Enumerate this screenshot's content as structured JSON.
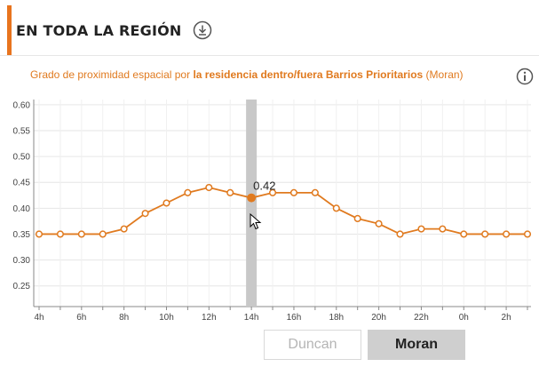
{
  "header": {
    "title": "EN TODA LA REGIÓN",
    "download_icon": "download-icon"
  },
  "subtitle": {
    "prefix": "Grado de proximidad espacial por ",
    "bold": "la residencia dentro/fuera Barrios Prioritarios",
    "suffix": " (Moran)"
  },
  "info_icon": "info-icon",
  "buttons": {
    "duncan": "Duncan",
    "moran": "Moran"
  },
  "colors": {
    "accent": "#e8741e",
    "series": "#e07a1f",
    "highlight_band": "#c8c8c8"
  },
  "chart_data": {
    "type": "line",
    "x_ticks": [
      "4h",
      "6h",
      "8h",
      "10h",
      "12h",
      "14h",
      "16h",
      "18h",
      "20h",
      "22h",
      "0h",
      "2h"
    ],
    "x": [
      "4h",
      "5h",
      "6h",
      "7h",
      "8h",
      "9h",
      "10h",
      "11h",
      "12h",
      "13h",
      "14h",
      "15h",
      "16h",
      "17h",
      "18h",
      "19h",
      "20h",
      "21h",
      "22h",
      "23h",
      "0h",
      "1h",
      "2h",
      "3h"
    ],
    "values": [
      0.35,
      0.35,
      0.35,
      0.35,
      0.36,
      0.39,
      0.41,
      0.43,
      0.44,
      0.43,
      0.42,
      0.43,
      0.43,
      0.43,
      0.4,
      0.38,
      0.37,
      0.35,
      0.36,
      0.36,
      0.35,
      0.35,
      0.35,
      0.35
    ],
    "y_ticks": [
      "0.25",
      "0.30",
      "0.35",
      "0.40",
      "0.45",
      "0.50",
      "0.55",
      "0.60"
    ],
    "ylim": [
      0.21,
      0.61
    ],
    "highlight_x": "14h",
    "tooltip": "0.42",
    "grid": true
  }
}
